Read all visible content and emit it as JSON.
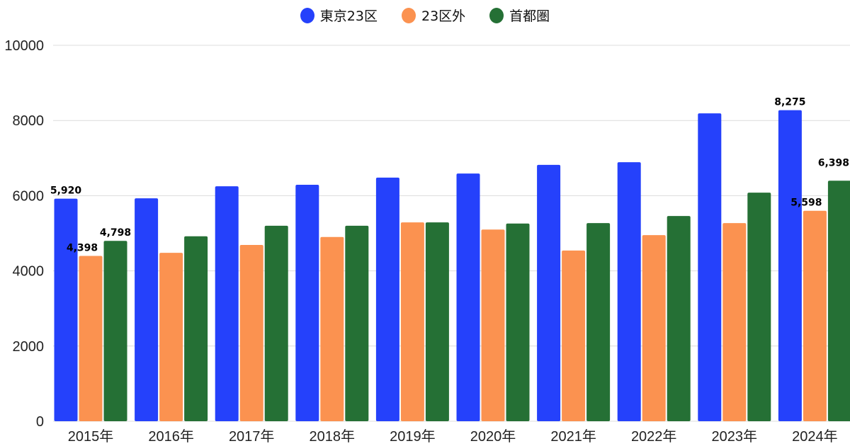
{
  "chart_data": {
    "type": "bar",
    "title": "",
    "xlabel": "",
    "ylabel": "",
    "ylim": [
      0,
      10000
    ],
    "yticks": [
      "0",
      "2000",
      "4000",
      "6000",
      "8000",
      "10000"
    ],
    "grid": true,
    "legend_position": "top-center",
    "categories": [
      "2015年",
      "2016年",
      "2017年",
      "2018年",
      "2019年",
      "2020年",
      "2021年",
      "2022年",
      "2023年",
      "2024年"
    ],
    "series": [
      {
        "name": "東京23区",
        "color": "#2541FB",
        "values": [
          5920,
          5930,
          6250,
          6290,
          6480,
          6590,
          6820,
          6890,
          8190,
          8275
        ]
      },
      {
        "name": "23区外",
        "color": "#FB9250",
        "values": [
          4398,
          4480,
          4690,
          4900,
          5290,
          5100,
          4540,
          4950,
          5270,
          5598
        ]
      },
      {
        "name": "首都圏",
        "color": "#257035",
        "values": [
          4798,
          4920,
          5200,
          5200,
          5290,
          5260,
          5270,
          5460,
          6080,
          6398
        ]
      }
    ],
    "data_labels": [
      {
        "series": 0,
        "index": 0,
        "text": "5,920"
      },
      {
        "series": 1,
        "index": 0,
        "text": "4,398"
      },
      {
        "series": 2,
        "index": 0,
        "text": "4,798"
      },
      {
        "series": 0,
        "index": 9,
        "text": "8,275"
      },
      {
        "series": 1,
        "index": 9,
        "text": "5,598"
      },
      {
        "series": 2,
        "index": 9,
        "text": "6,398"
      }
    ]
  }
}
